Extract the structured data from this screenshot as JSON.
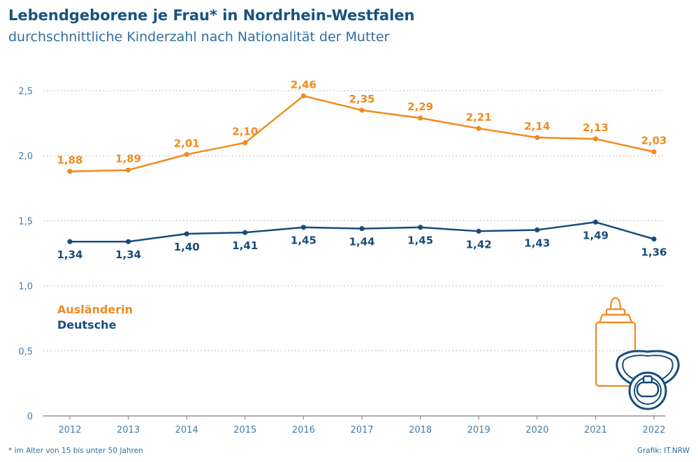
{
  "header": {
    "title": "Lebendgeborene je Frau* in Nordrhein-Westfalen",
    "subtitle": "durchschnittliche Kinderzahl nach Nationalität der Mutter"
  },
  "footer": {
    "footnote": "* im Alter von 15 bis unter 50 Jahren",
    "credit": "Grafik: IT.NRW"
  },
  "colors": {
    "auslaenderin": "#f28a1f",
    "deutsche": "#184c7c",
    "axis_text": "#3f7fae",
    "grid": "#b9b9b9"
  },
  "icons": [
    "baby-bottle-icon",
    "pacifier-icon"
  ],
  "chart_data": {
    "type": "line",
    "title": "Lebendgeborene je Frau* in Nordrhein-Westfalen",
    "subtitle": "durchschnittliche Kinderzahl nach Nationalität der Mutter",
    "xlabel": "",
    "ylabel": "",
    "x": [
      "2012",
      "2013",
      "2014",
      "2015",
      "2016",
      "2017",
      "2018",
      "2019",
      "2020",
      "2021",
      "2022"
    ],
    "ylim": [
      0,
      2.5
    ],
    "yticks": [
      0,
      0.5,
      1.0,
      1.5,
      2.0,
      2.5
    ],
    "ytick_labels": [
      "0",
      "0,5",
      "1,0",
      "1,5",
      "2,0",
      "2,5"
    ],
    "grid": true,
    "legend_placement": "middle-left",
    "series": [
      {
        "name": "Ausländerin",
        "color": "#f28a1f",
        "values": [
          1.88,
          1.89,
          2.01,
          2.1,
          2.46,
          2.35,
          2.29,
          2.21,
          2.14,
          2.13,
          2.03
        ],
        "labels": [
          "1,88",
          "1,89",
          "2,01",
          "2,10",
          "2,46",
          "2,35",
          "2,29",
          "2,21",
          "2,14",
          "2,13",
          "2,03"
        ],
        "label_position": "above"
      },
      {
        "name": "Deutsche",
        "color": "#184c7c",
        "values": [
          1.34,
          1.34,
          1.4,
          1.41,
          1.45,
          1.44,
          1.45,
          1.42,
          1.43,
          1.49,
          1.36
        ],
        "labels": [
          "1,34",
          "1,34",
          "1,40",
          "1,41",
          "1,45",
          "1,44",
          "1,45",
          "1,42",
          "1,43",
          "1,49",
          "1,36"
        ],
        "label_position": "below"
      }
    ]
  }
}
